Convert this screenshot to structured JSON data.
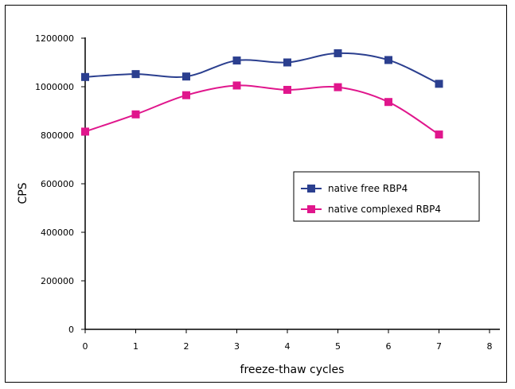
{
  "chart_data": {
    "type": "line",
    "xlabel": "freeze-thaw cycles",
    "ylabel": "CPS",
    "xlim": [
      0,
      8
    ],
    "ylim": [
      0,
      1200000
    ],
    "xticks": [
      "0",
      "1",
      "2",
      "3",
      "4",
      "5",
      "6",
      "7",
      "8"
    ],
    "yticks": [
      "0",
      "200000",
      "400000",
      "600000",
      "800000",
      "1000000",
      "1200000"
    ],
    "grid": false,
    "legend_position": "right",
    "series": [
      {
        "name": "native free RBP4",
        "color": "#2b3f8f",
        "marker": "square",
        "x": [
          0,
          1,
          2,
          3,
          4,
          5,
          6,
          7
        ],
        "y": [
          1040000,
          1052000,
          1042000,
          1108000,
          1100000,
          1138000,
          1110000,
          1012000
        ]
      },
      {
        "name": "native complexed RBP4",
        "color": "#e0168c",
        "marker": "square",
        "x": [
          0,
          1,
          2,
          3,
          4,
          5,
          6,
          7
        ],
        "y": [
          815000,
          886000,
          965000,
          1005000,
          987000,
          998000,
          937000,
          803000
        ]
      }
    ]
  }
}
